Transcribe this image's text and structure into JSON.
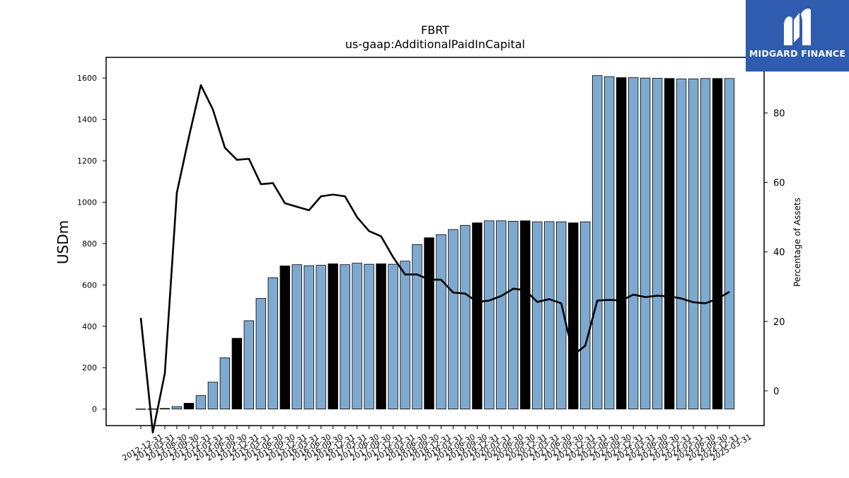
{
  "logo": {
    "text": "MIDGARD FINANCE",
    "background": "#2f5cae"
  },
  "chart_data": {
    "type": "bar",
    "title": "FBRT",
    "subtitle": "us-gaap:AdditionalPaidInCapital",
    "ylabel": "USDm",
    "y2label": "Percentage of Assets",
    "ylim": [
      -80,
      1700
    ],
    "y2lim": [
      -10,
      96
    ],
    "yticks": [
      0,
      200,
      400,
      600,
      800,
      1000,
      1200,
      1400,
      1600
    ],
    "y2ticks": [
      0,
      20,
      40,
      60,
      80
    ],
    "grid": false,
    "bar_color": "#7eaad0",
    "highlight_color": "#000000",
    "line_color": "#000000",
    "categories": [
      "2012-12-31",
      "2013-03-31",
      "2013-06-30",
      "2013-09-30",
      "2013-12-31",
      "2014-03-31",
      "2014-06-30",
      "2014-09-30",
      "2014-12-31",
      "2015-03-31",
      "2015-06-30",
      "2015-09-30",
      "2015-12-31",
      "2016-03-31",
      "2016-06-30",
      "2016-09-30",
      "2016-12-31",
      "2017-03-31",
      "2017-06-30",
      "2017-09-30",
      "2017-12-31",
      "2018-03-31",
      "2018-06-30",
      "2018-09-30",
      "2018-12-31",
      "2019-03-31",
      "2019-06-30",
      "2019-09-30",
      "2019-12-31",
      "2020-03-31",
      "2020-06-30",
      "2020-09-30",
      "2020-12-31",
      "2021-03-31",
      "2021-06-30",
      "2021-09-30",
      "2021-12-31",
      "2022-03-31",
      "2022-06-30",
      "2022-09-30",
      "2022-12-31",
      "2023-03-31",
      "2023-06-30",
      "2023-09-30",
      "2023-12-31",
      "2024-03-31",
      "2024-06-30",
      "2024-09-30",
      "2024-12-31",
      "2025-03-31"
    ],
    "tick_labels": [
      "2012-12-31",
      "2013-03-31",
      "2013-06-30",
      "2013-09-30",
      "2013-12-31",
      "2014-03-31",
      "2014-06-30",
      "2014-09-30",
      "2014-12-31",
      "2015-03-31",
      "2015-06-30",
      "2015-09-30",
      "2015-12-31",
      "2016-03-31",
      "2016-06-30",
      "2016-09-30",
      "2016-12-31",
      "2017-03-31",
      "2017-06-30",
      "2017-09-30",
      "2017-12-31",
      "2018-03-31",
      "2018-06-30",
      "2018-09-30",
      "2018-12-31",
      "2019-03-31",
      "2019-06-30",
      "2019-09-30",
      "2019-12-31",
      "2020-03-31",
      "2020-06-30",
      "2020-09-30",
      "2020-12-31",
      "2021-03-31",
      "2021-06-30",
      "2021-09-30",
      "2021-12-31",
      "2022-03-31",
      "2022-06-30",
      "2022-09-30",
      "2022-12-31",
      "2023-03-31",
      "2023-06-30",
      "2023-09-30",
      "2023-12-31",
      "2024-03-31",
      "2024-06-30",
      "2024-09-30",
      "2024-12-31",
      "2025-03-31"
    ],
    "values": [
      0.5,
      1,
      3,
      12,
      28,
      65,
      130,
      248,
      342,
      427,
      535,
      635,
      692,
      698,
      693,
      695,
      702,
      698,
      705,
      700,
      702,
      700,
      715,
      795,
      828,
      843,
      868,
      888,
      900,
      910,
      910,
      908,
      910,
      905,
      906,
      905,
      900,
      905,
      1612,
      1607,
      1602,
      1602,
      1600,
      1599,
      1598,
      1596,
      1596,
      1598,
      1598,
      1598
    ],
    "highlight": [
      false,
      false,
      false,
      false,
      true,
      false,
      false,
      false,
      true,
      false,
      false,
      false,
      true,
      false,
      false,
      false,
      true,
      false,
      false,
      false,
      true,
      false,
      false,
      false,
      true,
      false,
      false,
      false,
      true,
      false,
      false,
      false,
      true,
      false,
      false,
      false,
      true,
      false,
      false,
      false,
      true,
      false,
      false,
      false,
      true,
      false,
      false,
      false,
      true,
      false
    ],
    "pct_assets": [
      21,
      -12,
      5,
      57,
      73,
      88,
      81,
      70,
      66.5,
      66.8,
      59.5,
      59.8,
      54,
      53,
      52,
      56,
      56.5,
      56,
      50,
      46,
      44.5,
      38.5,
      33.5,
      33.5,
      32,
      32,
      28.3,
      28,
      25.6,
      26,
      27.3,
      29.4,
      29,
      25.6,
      26.4,
      25.2,
      10.3,
      13,
      26,
      26.2,
      26,
      27.7,
      27,
      27.4,
      27.2,
      26.6,
      25.5,
      25.2,
      26.5,
      28.5
    ]
  }
}
